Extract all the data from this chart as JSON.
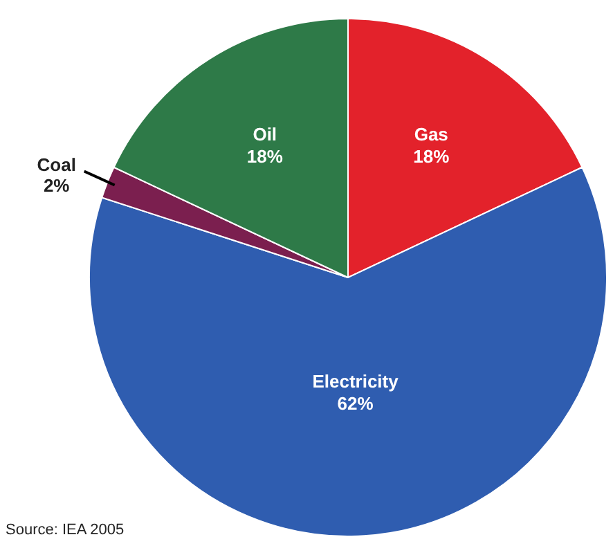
{
  "chart_data": {
    "type": "pie",
    "categories": [
      "Gas",
      "Electricity",
      "Coal",
      "Oil"
    ],
    "values": [
      18,
      62,
      2,
      18
    ],
    "colors": [
      "#e3222b",
      "#2f5db0",
      "#7b1f4f",
      "#2e7a48"
    ],
    "value_labels": [
      "18%",
      "62%",
      "2%",
      "18%"
    ],
    "annotations": [
      "Source: IEA 2005"
    ]
  }
}
